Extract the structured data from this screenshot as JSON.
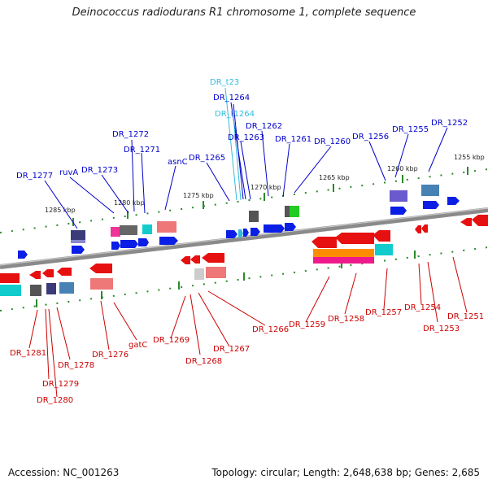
{
  "title": "Deinococcus radiodurans R1 chromosome 1, complete sequence",
  "footer": {
    "accession": "Accession: NC_001263",
    "topology": "Topology: circular; Length: 2,648,638 bp; Genes: 2,685"
  },
  "colors": {
    "forward": "#1010dd",
    "reverse": "#dd1010",
    "trna": "#33bbdd",
    "tick": "#2a8a2a",
    "backbone": "#808080"
  },
  "chart_data": {
    "type": "linear genome map",
    "ruler_ticks": [
      "1285 kbp",
      "1280 kbp",
      "1275 kbp",
      "1270 kbp",
      "1265 kbp",
      "1260 kbp",
      "1255 kbp"
    ],
    "forward_genes": [
      "DR_1277",
      "ruvA",
      "DR_1273",
      "DR_1272",
      "DR_1271",
      "asnC",
      "DR_1265",
      "DR_t23",
      "DR_1264",
      "DR_t1264",
      "DR_1263",
      "DR_1262",
      "DR_1261",
      "DR_1260",
      "DR_1256",
      "DR_1255",
      "DR_1252"
    ],
    "reverse_genes": [
      "DR_1281",
      "DR_1279",
      "DR_1280",
      "DR_1278",
      "DR_1276",
      "gatC",
      "DR_1269",
      "DR_1268",
      "DR_1267",
      "DR_1266",
      "DR_1259",
      "DR_1258",
      "DR_1257",
      "DR_1254",
      "DR_1253",
      "DR_1251"
    ]
  }
}
